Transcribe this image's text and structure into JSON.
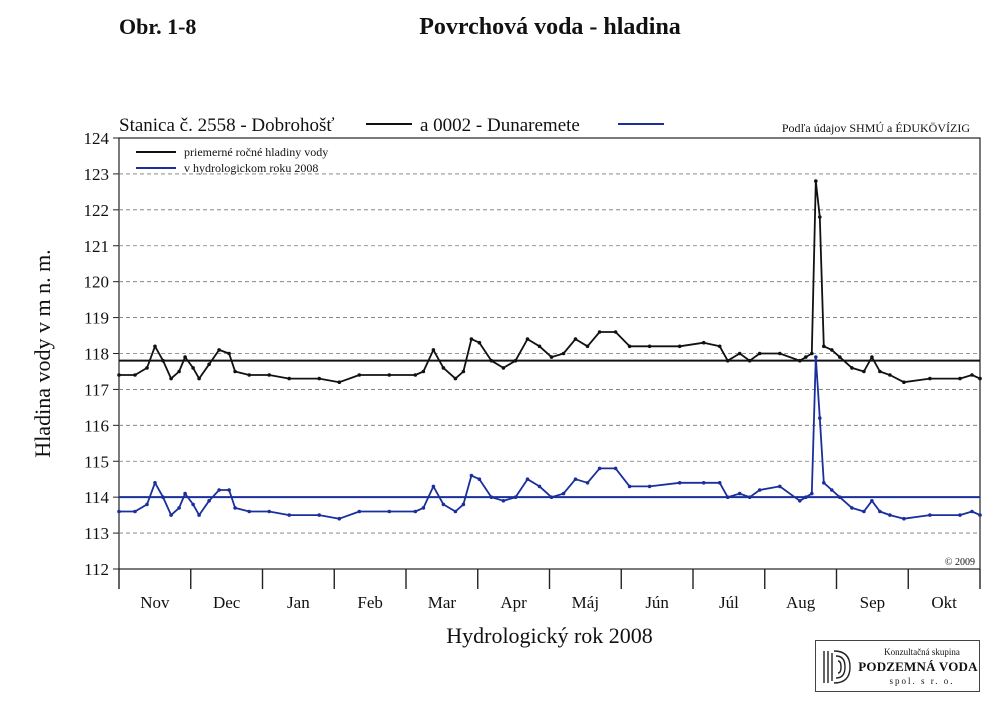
{
  "header": {
    "figure_label": "Obr. 1-8",
    "title": "Povrchová voda - hladina"
  },
  "logo": {
    "top_text": "Konzultačná skupina",
    "name": "PODZEMNÁ VODA",
    "bottom_text": "spol. s r. o."
  },
  "chart_data": {
    "type": "line",
    "title": "Povrchová voda - hladina",
    "xlabel": "Hydrologický rok 2008",
    "ylabel": "Hladina vody v m n. m.",
    "ylim": [
      112,
      124
    ],
    "yticks": [
      112,
      113,
      114,
      115,
      116,
      117,
      118,
      119,
      120,
      121,
      122,
      123,
      124
    ],
    "grid": "horizontal dashed",
    "months": [
      "Nov",
      "Dec",
      "Jan",
      "Feb",
      "Mar",
      "Apr",
      "Máj",
      "Jún",
      "Júl",
      "Aug",
      "Sep",
      "Okt"
    ],
    "station_legend": {
      "label1": "Stanica č. 2558 - Dobrohošť",
      "label2": "a 0002 - Dunaremete",
      "color1": "#111111",
      "color2": "#1a2f9c"
    },
    "legend": {
      "placement": "top-left",
      "entries": [
        "priemerné ročné hladiny vody",
        "v hydrologickom roku 2008"
      ]
    },
    "source_note": "Podľa údajov SHMÚ a ÉDUKÖVÍZIG",
    "copyright": "© 2009",
    "average_lines": [
      {
        "series": "Dobrohošť",
        "value": 117.8,
        "color": "#111111"
      },
      {
        "series": "Dunaremete",
        "value": 114.0,
        "color": "#1a2f9c"
      }
    ],
    "series": [
      {
        "name": "Dobrohošť",
        "color": "#111111",
        "points": [
          [
            0,
            117.4
          ],
          [
            8,
            117.4
          ],
          [
            14,
            117.6
          ],
          [
            18,
            118.2
          ],
          [
            22,
            117.8
          ],
          [
            26,
            117.3
          ],
          [
            30,
            117.5
          ],
          [
            33,
            117.9
          ],
          [
            37,
            117.6
          ],
          [
            40,
            117.3
          ],
          [
            45,
            117.7
          ],
          [
            50,
            118.1
          ],
          [
            55,
            118.0
          ],
          [
            58,
            117.5
          ],
          [
            65,
            117.4
          ],
          [
            75,
            117.4
          ],
          [
            85,
            117.3
          ],
          [
            100,
            117.3
          ],
          [
            110,
            117.2
          ],
          [
            120,
            117.4
          ],
          [
            135,
            117.4
          ],
          [
            148,
            117.4
          ],
          [
            152,
            117.5
          ],
          [
            157,
            118.1
          ],
          [
            162,
            117.6
          ],
          [
            168,
            117.3
          ],
          [
            172,
            117.5
          ],
          [
            176,
            118.4
          ],
          [
            180,
            118.3
          ],
          [
            186,
            117.8
          ],
          [
            192,
            117.6
          ],
          [
            198,
            117.8
          ],
          [
            204,
            118.4
          ],
          [
            210,
            118.2
          ],
          [
            216,
            117.9
          ],
          [
            222,
            118.0
          ],
          [
            228,
            118.4
          ],
          [
            234,
            118.2
          ],
          [
            240,
            118.6
          ],
          [
            248,
            118.6
          ],
          [
            255,
            118.2
          ],
          [
            265,
            118.2
          ],
          [
            280,
            118.2
          ],
          [
            292,
            118.3
          ],
          [
            300,
            118.2
          ],
          [
            304,
            117.8
          ],
          [
            310,
            118.0
          ],
          [
            315,
            117.8
          ],
          [
            320,
            118.0
          ],
          [
            330,
            118.0
          ],
          [
            340,
            117.8
          ],
          [
            343,
            117.9
          ],
          [
            346,
            118.0
          ],
          [
            348,
            122.8
          ],
          [
            350,
            121.8
          ],
          [
            352,
            118.2
          ],
          [
            356,
            118.1
          ],
          [
            360,
            117.9
          ],
          [
            366,
            117.6
          ],
          [
            372,
            117.5
          ],
          [
            376,
            117.9
          ],
          [
            380,
            117.5
          ],
          [
            385,
            117.4
          ],
          [
            392,
            117.2
          ],
          [
            405,
            117.3
          ],
          [
            420,
            117.3
          ],
          [
            426,
            117.4
          ],
          [
            430,
            117.3
          ]
        ]
      },
      {
        "name": "Dunaremete",
        "color": "#1a2f9c",
        "points": [
          [
            0,
            113.6
          ],
          [
            8,
            113.6
          ],
          [
            14,
            113.8
          ],
          [
            18,
            114.4
          ],
          [
            22,
            114.0
          ],
          [
            26,
            113.5
          ],
          [
            30,
            113.7
          ],
          [
            33,
            114.1
          ],
          [
            37,
            113.8
          ],
          [
            40,
            113.5
          ],
          [
            45,
            113.9
          ],
          [
            50,
            114.2
          ],
          [
            55,
            114.2
          ],
          [
            58,
            113.7
          ],
          [
            65,
            113.6
          ],
          [
            75,
            113.6
          ],
          [
            85,
            113.5
          ],
          [
            100,
            113.5
          ],
          [
            110,
            113.4
          ],
          [
            120,
            113.6
          ],
          [
            135,
            113.6
          ],
          [
            148,
            113.6
          ],
          [
            152,
            113.7
          ],
          [
            157,
            114.3
          ],
          [
            162,
            113.8
          ],
          [
            168,
            113.6
          ],
          [
            172,
            113.8
          ],
          [
            176,
            114.6
          ],
          [
            180,
            114.5
          ],
          [
            186,
            114.0
          ],
          [
            192,
            113.9
          ],
          [
            198,
            114.0
          ],
          [
            204,
            114.5
          ],
          [
            210,
            114.3
          ],
          [
            216,
            114.0
          ],
          [
            222,
            114.1
          ],
          [
            228,
            114.5
          ],
          [
            234,
            114.4
          ],
          [
            240,
            114.8
          ],
          [
            248,
            114.8
          ],
          [
            255,
            114.3
          ],
          [
            265,
            114.3
          ],
          [
            280,
            114.4
          ],
          [
            292,
            114.4
          ],
          [
            300,
            114.4
          ],
          [
            304,
            114.0
          ],
          [
            310,
            114.1
          ],
          [
            315,
            114.0
          ],
          [
            320,
            114.2
          ],
          [
            330,
            114.3
          ],
          [
            340,
            113.9
          ],
          [
            343,
            114.0
          ],
          [
            346,
            114.1
          ],
          [
            348,
            117.9
          ],
          [
            350,
            116.2
          ],
          [
            352,
            114.4
          ],
          [
            356,
            114.2
          ],
          [
            360,
            114.0
          ],
          [
            366,
            113.7
          ],
          [
            372,
            113.6
          ],
          [
            376,
            113.9
          ],
          [
            380,
            113.6
          ],
          [
            385,
            113.5
          ],
          [
            392,
            113.4
          ],
          [
            405,
            113.5
          ],
          [
            420,
            113.5
          ],
          [
            426,
            113.6
          ],
          [
            430,
            113.5
          ]
        ]
      }
    ]
  }
}
